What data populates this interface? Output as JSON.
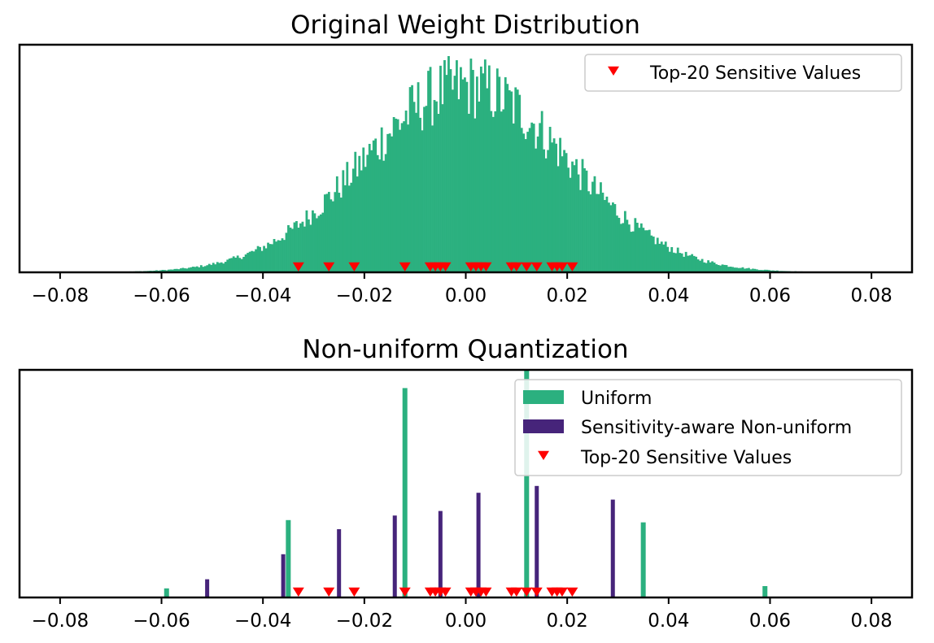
{
  "colors": {
    "uniform": "#2bb07f",
    "nonuniform": "#46247a",
    "sensitive": "#ff0000",
    "axes": "#000000"
  },
  "chart_data": [
    {
      "type": "bar",
      "subtype": "histogram",
      "title": "Original Weight Distribution",
      "xlim": [
        -0.088,
        0.088
      ],
      "xticks": [
        -0.08,
        -0.06,
        -0.04,
        -0.02,
        0.0,
        0.02,
        0.04,
        0.06,
        0.08
      ],
      "xtick_labels": [
        "−0.08",
        "−0.06",
        "−0.04",
        "−0.02",
        "0.00",
        "0.02",
        "0.04",
        "0.06",
        "0.08"
      ],
      "ylabel": "",
      "yticks_visible": false,
      "distribution": {
        "shape": "normal",
        "mean": 0.0,
        "std": 0.02,
        "range": [
          -0.08,
          0.08
        ],
        "bins": 400
      },
      "legend": {
        "placement": "upper right",
        "entries": [
          {
            "label": "Top-20 Sensitive Values",
            "marker": "triangle-down",
            "color": "#ff0000"
          }
        ]
      },
      "sensitive_values": [
        -0.033,
        -0.027,
        -0.022,
        -0.012,
        -0.007,
        -0.006,
        -0.005,
        -0.004,
        0.001,
        0.002,
        0.003,
        0.004,
        0.009,
        0.01,
        0.012,
        0.014,
        0.017,
        0.018,
        0.019,
        0.021
      ]
    },
    {
      "type": "bar",
      "title": "Non-uniform Quantization",
      "xlim": [
        -0.088,
        0.088
      ],
      "xticks": [
        -0.08,
        -0.06,
        -0.04,
        -0.02,
        0.0,
        0.02,
        0.04,
        0.06,
        0.08
      ],
      "xtick_labels": [
        "−0.08",
        "−0.06",
        "−0.04",
        "−0.02",
        "0.00",
        "0.02",
        "0.04",
        "0.06",
        "0.08"
      ],
      "ylabel": "",
      "yticks_visible": false,
      "ylim": [
        0,
        1.0
      ],
      "series": [
        {
          "name": "Uniform",
          "color": "#2bb07f",
          "x": [
            -0.059,
            -0.035,
            -0.012,
            0.012,
            0.035,
            0.059
          ],
          "values": [
            0.04,
            0.34,
            0.92,
            1.0,
            0.33,
            0.05
          ]
        },
        {
          "name": "Sensitivity-aware Non-uniform",
          "color": "#46247a",
          "x": [
            -0.051,
            -0.036,
            -0.025,
            -0.014,
            -0.005,
            0.0025,
            0.014,
            0.029
          ],
          "values": [
            0.08,
            0.19,
            0.3,
            0.36,
            0.38,
            0.46,
            0.49,
            0.43
          ]
        }
      ],
      "legend": {
        "placement": "upper right",
        "entries": [
          {
            "label": "Uniform",
            "marker": "patch",
            "color": "#2bb07f"
          },
          {
            "label": "Sensitivity-aware Non-uniform",
            "marker": "patch",
            "color": "#46247a"
          },
          {
            "label": "Top-20 Sensitive Values",
            "marker": "triangle-down",
            "color": "#ff0000"
          }
        ]
      },
      "sensitive_values": [
        -0.033,
        -0.027,
        -0.022,
        -0.012,
        -0.007,
        -0.006,
        -0.005,
        -0.004,
        0.001,
        0.002,
        0.003,
        0.004,
        0.009,
        0.01,
        0.012,
        0.014,
        0.017,
        0.018,
        0.019,
        0.021
      ]
    }
  ]
}
